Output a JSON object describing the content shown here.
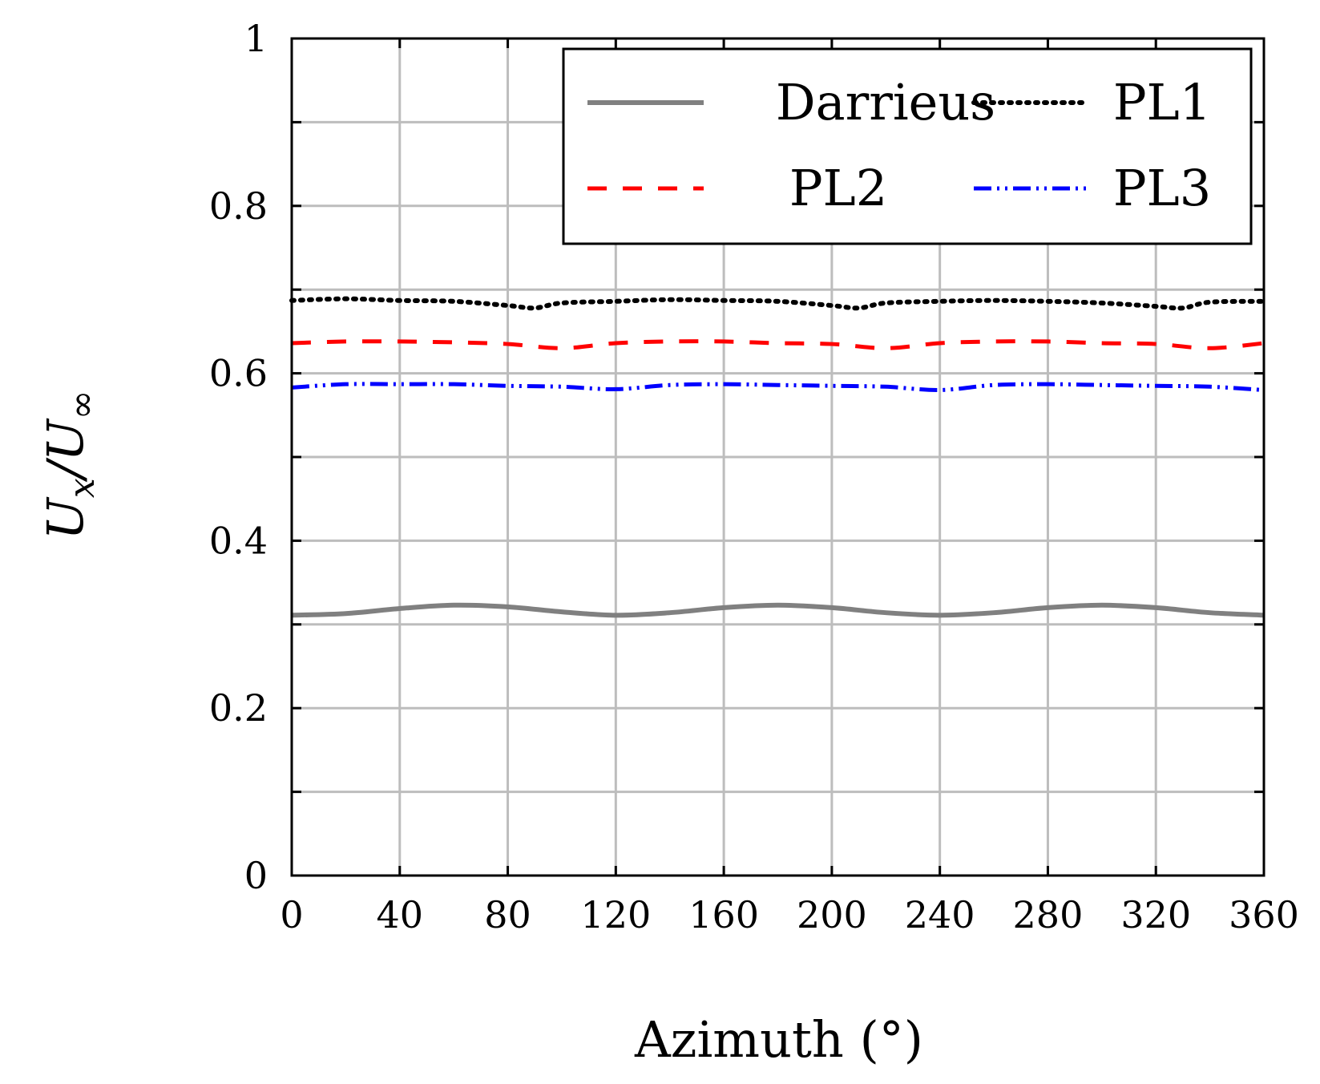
{
  "chart_data": {
    "type": "line",
    "xlabel": "Azimuth (°)",
    "ylabel_main": "U",
    "ylabel_sub_x": "x",
    "ylabel_slash": "/U",
    "ylabel_sub_inf": "∞",
    "xlim": [
      0,
      360
    ],
    "ylim": [
      0,
      1
    ],
    "xticks": [
      0,
      40,
      80,
      120,
      160,
      200,
      240,
      280,
      320,
      360
    ],
    "xtick_labels": [
      "0",
      "40",
      "80",
      "120",
      "160",
      "200",
      "240",
      "280",
      "320",
      "360"
    ],
    "yticks": [
      0,
      0.2,
      0.4,
      0.6,
      0.8,
      1
    ],
    "ytick_labels": [
      "0",
      "0.2",
      "0.4",
      "0.6",
      "0.8",
      "1"
    ],
    "minor_yticks": [
      0.1,
      0.3,
      0.5,
      0.7,
      0.9
    ],
    "grid": true,
    "legend_position": "top-right",
    "series": [
      {
        "name": "Darrieus",
        "color": "#808080",
        "style": "solid",
        "x": [
          0,
          20,
          40,
          60,
          80,
          100,
          120,
          140,
          160,
          180,
          200,
          220,
          240,
          260,
          280,
          300,
          320,
          340,
          360
        ],
        "y": [
          0.311,
          0.313,
          0.319,
          0.323,
          0.321,
          0.315,
          0.311,
          0.314,
          0.32,
          0.323,
          0.32,
          0.314,
          0.311,
          0.314,
          0.32,
          0.323,
          0.32,
          0.314,
          0.311
        ]
      },
      {
        "name": "PL1",
        "color": "#000000",
        "style": "dotted",
        "x": [
          0,
          20,
          40,
          60,
          80,
          90,
          100,
          120,
          140,
          160,
          180,
          200,
          210,
          220,
          240,
          260,
          280,
          300,
          320,
          330,
          340,
          360
        ],
        "y": [
          0.687,
          0.689,
          0.687,
          0.686,
          0.681,
          0.678,
          0.684,
          0.686,
          0.688,
          0.687,
          0.686,
          0.681,
          0.678,
          0.684,
          0.686,
          0.687,
          0.686,
          0.684,
          0.68,
          0.678,
          0.685,
          0.686
        ]
      },
      {
        "name": "PL2",
        "color": "#ff0000",
        "style": "dashed",
        "x": [
          0,
          20,
          40,
          60,
          80,
          100,
          120,
          140,
          160,
          180,
          200,
          220,
          240,
          260,
          280,
          300,
          320,
          340,
          360
        ],
        "y": [
          0.636,
          0.638,
          0.638,
          0.637,
          0.635,
          0.63,
          0.636,
          0.638,
          0.638,
          0.636,
          0.635,
          0.63,
          0.636,
          0.638,
          0.638,
          0.636,
          0.635,
          0.63,
          0.636
        ]
      },
      {
        "name": "PL3",
        "color": "#0000ff",
        "style": "dashdotdot",
        "x": [
          0,
          20,
          40,
          60,
          80,
          100,
          120,
          140,
          160,
          180,
          200,
          220,
          240,
          260,
          280,
          300,
          320,
          340,
          360
        ],
        "y": [
          0.583,
          0.587,
          0.587,
          0.587,
          0.585,
          0.584,
          0.581,
          0.586,
          0.587,
          0.586,
          0.585,
          0.584,
          0.58,
          0.586,
          0.587,
          0.586,
          0.585,
          0.584,
          0.58
        ]
      }
    ]
  }
}
